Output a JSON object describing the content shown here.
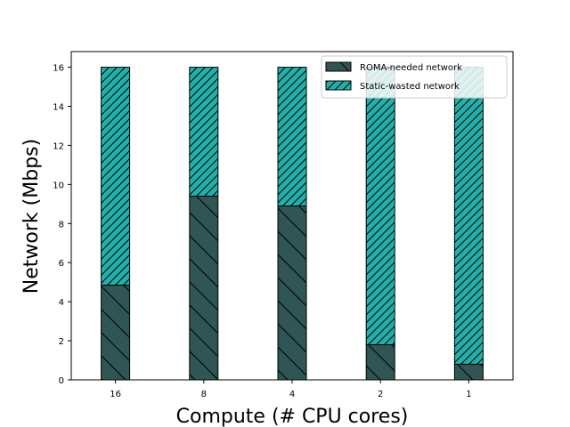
{
  "chart_data": {
    "type": "bar",
    "stacked": true,
    "title": "",
    "xlabel": "Compute (# CPU cores)",
    "ylabel": "Network (Mbps)",
    "categories": [
      "16",
      "8",
      "4",
      "2",
      "1"
    ],
    "ylim": [
      0,
      16.8
    ],
    "yticks": [
      0,
      2,
      4,
      6,
      8,
      10,
      12,
      14,
      16
    ],
    "series": [
      {
        "name": "ROMA-needed network",
        "values": [
          4.85,
          9.4,
          8.9,
          1.8,
          0.8
        ],
        "color": "#2f5555",
        "hatch": "backslash"
      },
      {
        "name": "Static-wasted network",
        "values": [
          11.15,
          6.6,
          7.1,
          14.2,
          15.2
        ],
        "color": "#20b2aa",
        "hatch": "slash"
      }
    ],
    "legend_position": "top-right"
  }
}
